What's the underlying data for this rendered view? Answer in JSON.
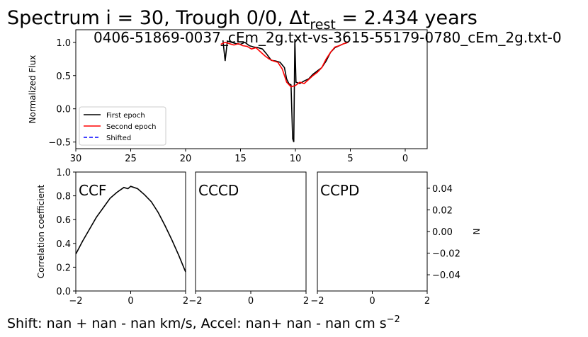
{
  "figure": {
    "title": [
      "Spectrum i = 30, Trough 0/0, Δt",
      "rest",
      " = 2.434 years"
    ],
    "footer": [
      "Shift:   nan +   nan -   nan km/s, Accel:   nan+   nan -   nan cm s",
      "−2"
    ]
  },
  "chart_data": [
    {
      "type": "line",
      "annotation": "0406-51869-0037_cEm_2g.txt-vs-3615-55179-0780_cEm_2g.txt-0",
      "y_label": "Normalized Flux",
      "xlim": [
        30,
        -2
      ],
      "ylim": [
        -0.6,
        1.19
      ],
      "xticks": [
        30,
        25,
        20,
        15,
        10,
        5,
        0
      ],
      "yticks": [
        {
          "value": -0.5,
          "label": "−0.5"
        },
        {
          "value": 0,
          "label": "0.0"
        },
        0.5,
        {
          "value": 1,
          "label": "1.0"
        }
      ],
      "legend": "lower left",
      "series": [
        {
          "name": "First epoch",
          "color": "#000000",
          "dash": "solid",
          "x": [
            16.6,
            16.4,
            16.2,
            15.8,
            15.4,
            15.0,
            14.6,
            14.2,
            13.8,
            13.4,
            13.0,
            12.6,
            12.2,
            11.8,
            11.4,
            11.0,
            10.8,
            10.6,
            10.4,
            10.25,
            10.15,
            10.05,
            9.95,
            9.6,
            9.2,
            8.8,
            8.4,
            8.0,
            7.6,
            7.2,
            6.8,
            6.4,
            6.0,
            5.6,
            5.2
          ],
          "values": [
            1.03,
            0.72,
            1.02,
            1.0,
            0.98,
            0.97,
            1.0,
            0.95,
            0.93,
            0.92,
            0.9,
            0.82,
            0.73,
            0.72,
            0.7,
            0.62,
            0.45,
            0.38,
            0.36,
            -0.45,
            -0.5,
            1.05,
            0.4,
            0.38,
            0.42,
            0.45,
            0.52,
            0.57,
            0.62,
            0.72,
            0.85,
            0.92,
            0.95,
            0.98,
            1.0
          ]
        },
        {
          "name": "Second epoch",
          "color": "#ff0000",
          "dash": "solid",
          "x": [
            16.8,
            16.4,
            16.0,
            15.6,
            15.2,
            14.8,
            14.4,
            14.0,
            13.6,
            13.2,
            12.8,
            12.4,
            12.0,
            11.6,
            11.2,
            10.8,
            10.4,
            10.0,
            9.6,
            9.2,
            8.8,
            8.4,
            8.0,
            7.6,
            7.2,
            6.8,
            6.4,
            6.0,
            5.6,
            5.2
          ],
          "values": [
            0.97,
            1.0,
            0.98,
            0.96,
            0.98,
            0.95,
            0.94,
            0.9,
            0.92,
            0.86,
            0.8,
            0.75,
            0.72,
            0.7,
            0.6,
            0.4,
            0.33,
            0.35,
            0.4,
            0.38,
            0.44,
            0.5,
            0.55,
            0.62,
            0.75,
            0.85,
            0.93,
            0.95,
            0.98,
            1.0
          ]
        },
        {
          "name": "Shifted",
          "color": "#0000ff",
          "dash": "dashed",
          "x": [],
          "values": []
        }
      ]
    },
    {
      "type": "line",
      "label": "CCF",
      "y_label": "Correlation coefficient",
      "xlim": [
        -2,
        2
      ],
      "ylim": [
        0,
        1
      ],
      "xticks": [
        {
          "value": -2,
          "label": "−2"
        },
        0,
        2
      ],
      "yticks": [
        {
          "value": 0,
          "label": "0.0"
        },
        0.2,
        0.4,
        0.6,
        0.8,
        {
          "value": 1,
          "label": "1.0"
        }
      ],
      "series": [
        {
          "color": "#000000",
          "dash": "solid",
          "x": [
            -2,
            -1.75,
            -1.5,
            -1.25,
            -1.0,
            -0.75,
            -0.5,
            -0.25,
            -0.1,
            0,
            0.25,
            0.5,
            0.75,
            1.0,
            1.25,
            1.5,
            1.75,
            2.0
          ],
          "values": [
            0.31,
            0.42,
            0.52,
            0.62,
            0.7,
            0.78,
            0.83,
            0.87,
            0.86,
            0.88,
            0.86,
            0.81,
            0.75,
            0.66,
            0.55,
            0.43,
            0.3,
            0.16
          ]
        }
      ]
    },
    {
      "type": "line",
      "label": "CCCD",
      "xlim": [
        -2,
        2
      ],
      "ylim": [
        -0.055,
        0.055
      ],
      "xticks": [
        {
          "value": -2,
          "label": "−2"
        },
        0,
        2
      ],
      "series": []
    },
    {
      "type": "line",
      "label": "CCPD",
      "y_label": "N",
      "y_axis": "right",
      "xlim": [
        -2,
        2
      ],
      "ylim": [
        -0.055,
        0.055
      ],
      "xticks": [
        {
          "value": -2,
          "label": "−2"
        },
        0,
        2
      ],
      "yticks": [
        {
          "value": -0.04,
          "label": "−0.04"
        },
        {
          "value": -0.02,
          "label": "−0.02"
        },
        {
          "value": 0,
          "label": "0.00"
        },
        0.02,
        0.04
      ],
      "series": []
    }
  ]
}
